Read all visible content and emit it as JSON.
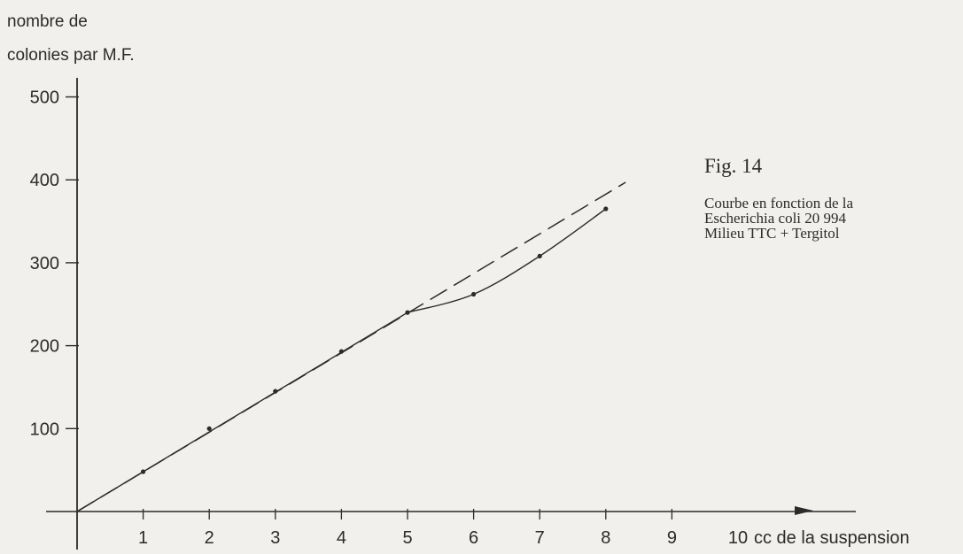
{
  "chart_data": {
    "type": "line",
    "ylabel_lines": [
      "nombre de",
      "colonies par M.F."
    ],
    "xlabel": "cc de la suspension",
    "x_ticks": [
      1,
      2,
      3,
      4,
      5,
      6,
      7,
      8,
      9,
      10
    ],
    "y_ticks": [
      100,
      200,
      300,
      400,
      500
    ],
    "xlim": [
      0,
      10
    ],
    "ylim": [
      0,
      500
    ],
    "grid": false,
    "series": [
      {
        "style": "solid-with-points",
        "x": [
          1,
          2,
          3,
          4,
          5,
          6,
          7,
          8
        ],
        "y": [
          48,
          100,
          145,
          193,
          240,
          262,
          308,
          365
        ]
      },
      {
        "style": "dashed",
        "x": [
          0,
          8.3
        ],
        "y": [
          0,
          397
        ]
      }
    ]
  },
  "caption": {
    "title": "Fig. 14",
    "lines": [
      "Courbe en fonction de la",
      "Escherichia coli 20 994",
      "Milieu TTC + Tergitol"
    ]
  }
}
